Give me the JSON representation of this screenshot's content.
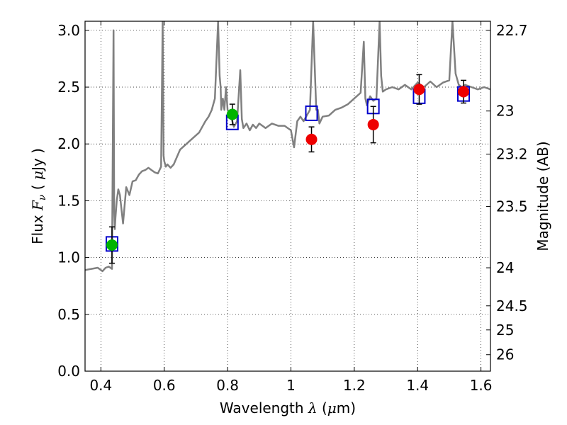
{
  "chart_data": {
    "type": "line",
    "title": "",
    "xlabel": {
      "prefix": "Wavelength ",
      "symbol": "λ",
      "suffix": " (",
      "unit_mu": "μ",
      "unit_tail": "m)"
    },
    "ylabel": {
      "prefix": "Flux ",
      "symbol": "F",
      "subscript": "ν",
      "unit_open": " ( ",
      "unit_mu": "μ",
      "unit_tail": "Jy )"
    },
    "y2label": "Magnitude (AB)",
    "xlim": [
      0.35,
      1.63
    ],
    "ylim": [
      0.0,
      3.08
    ],
    "grid": true,
    "x_ticks": [
      0.4,
      0.6,
      0.8,
      1.0,
      1.2,
      1.4,
      1.6
    ],
    "x_tick_labels": [
      "0.4",
      "0.6",
      "0.8",
      "1",
      "1.2",
      "1.4",
      "1.6"
    ],
    "y_ticks": [
      0.0,
      0.5,
      1.0,
      1.5,
      2.0,
      2.5,
      3.0
    ],
    "y_tick_labels": [
      "0.0",
      "0.5",
      "1.0",
      "1.5",
      "2.0",
      "2.5",
      "3.0"
    ],
    "y2_ticks": [
      {
        "label": "22.7",
        "flux": 3.0
      },
      {
        "label": "23",
        "flux": 2.29
      },
      {
        "label": "23.2",
        "flux": 1.91
      },
      {
        "label": "23.5",
        "flux": 1.45
      },
      {
        "label": "24",
        "flux": 0.91
      },
      {
        "label": "24.5",
        "flux": 0.575
      },
      {
        "label": "25",
        "flux": 0.363
      },
      {
        "label": "26",
        "flux": 0.145
      }
    ],
    "series": [
      {
        "kind": "model_spectrum",
        "color": "#808080",
        "x": [
          0.35,
          0.37,
          0.39,
          0.405,
          0.415,
          0.425,
          0.435,
          0.44,
          0.442,
          0.444,
          0.446,
          0.45,
          0.455,
          0.46,
          0.47,
          0.48,
          0.49,
          0.5,
          0.51,
          0.52,
          0.53,
          0.54,
          0.55,
          0.56,
          0.57,
          0.58,
          0.59,
          0.595,
          0.598,
          0.6,
          0.605,
          0.61,
          0.62,
          0.63,
          0.65,
          0.67,
          0.69,
          0.71,
          0.72,
          0.73,
          0.74,
          0.75,
          0.76,
          0.77,
          0.775,
          0.778,
          0.78,
          0.785,
          0.79,
          0.795,
          0.8,
          0.81,
          0.82,
          0.83,
          0.84,
          0.845,
          0.85,
          0.86,
          0.87,
          0.88,
          0.89,
          0.9,
          0.92,
          0.94,
          0.96,
          0.98,
          1.0,
          1.01,
          1.02,
          1.03,
          1.04,
          1.05,
          1.06,
          1.07,
          1.08,
          1.085,
          1.09,
          1.1,
          1.12,
          1.14,
          1.16,
          1.18,
          1.2,
          1.22,
          1.23,
          1.235,
          1.24,
          1.25,
          1.26,
          1.27,
          1.28,
          1.285,
          1.29,
          1.3,
          1.32,
          1.34,
          1.36,
          1.38,
          1.4,
          1.42,
          1.44,
          1.46,
          1.48,
          1.5,
          1.51,
          1.52,
          1.53,
          1.54,
          1.55,
          1.57,
          1.59,
          1.61,
          1.63
        ],
        "y": [
          0.89,
          0.9,
          0.91,
          0.88,
          0.91,
          0.92,
          0.9,
          3.0,
          1.4,
          1.25,
          1.35,
          1.5,
          1.6,
          1.55,
          1.3,
          1.62,
          1.55,
          1.67,
          1.68,
          1.73,
          1.76,
          1.77,
          1.79,
          1.77,
          1.75,
          1.74,
          1.8,
          3.08,
          1.9,
          1.85,
          1.8,
          1.82,
          1.79,
          1.82,
          1.95,
          2.0,
          2.05,
          2.1,
          2.15,
          2.2,
          2.24,
          2.3,
          2.4,
          3.08,
          2.6,
          2.5,
          2.3,
          2.4,
          2.3,
          2.5,
          2.3,
          2.25,
          2.15,
          2.2,
          2.65,
          2.22,
          2.14,
          2.18,
          2.12,
          2.17,
          2.14,
          2.18,
          2.14,
          2.18,
          2.16,
          2.16,
          2.12,
          1.97,
          2.2,
          2.24,
          2.2,
          2.25,
          2.3,
          3.08,
          2.3,
          2.3,
          2.18,
          2.24,
          2.25,
          2.3,
          2.32,
          2.35,
          2.4,
          2.45,
          2.9,
          2.4,
          2.34,
          2.42,
          2.38,
          2.4,
          3.08,
          2.6,
          2.46,
          2.48,
          2.5,
          2.48,
          2.52,
          2.48,
          2.54,
          2.5,
          2.55,
          2.5,
          2.54,
          2.56,
          3.08,
          2.62,
          2.52,
          2.5,
          2.52,
          2.5,
          2.48,
          2.5,
          2.48
        ]
      },
      {
        "kind": "model_photometry",
        "marker": "open-square",
        "color": "#0000cc",
        "x": [
          0.435,
          0.815,
          1.065,
          1.26,
          1.405,
          1.545
        ],
        "y": [
          1.12,
          2.19,
          2.27,
          2.33,
          2.42,
          2.44
        ]
      },
      {
        "kind": "observed_photometry",
        "marker": "filled-circle",
        "color": "#00b400",
        "x": [
          0.435,
          0.815
        ],
        "y": [
          1.11,
          2.26
        ],
        "yerr": [
          0.16,
          0.09
        ]
      },
      {
        "kind": "observed_photometry",
        "marker": "filled-circle",
        "color": "#ee0000",
        "x": [
          1.065,
          1.26,
          1.405,
          1.545
        ],
        "y": [
          2.04,
          2.17,
          2.48,
          2.46
        ],
        "yerr": [
          0.11,
          0.16,
          0.13,
          0.1
        ]
      }
    ]
  }
}
